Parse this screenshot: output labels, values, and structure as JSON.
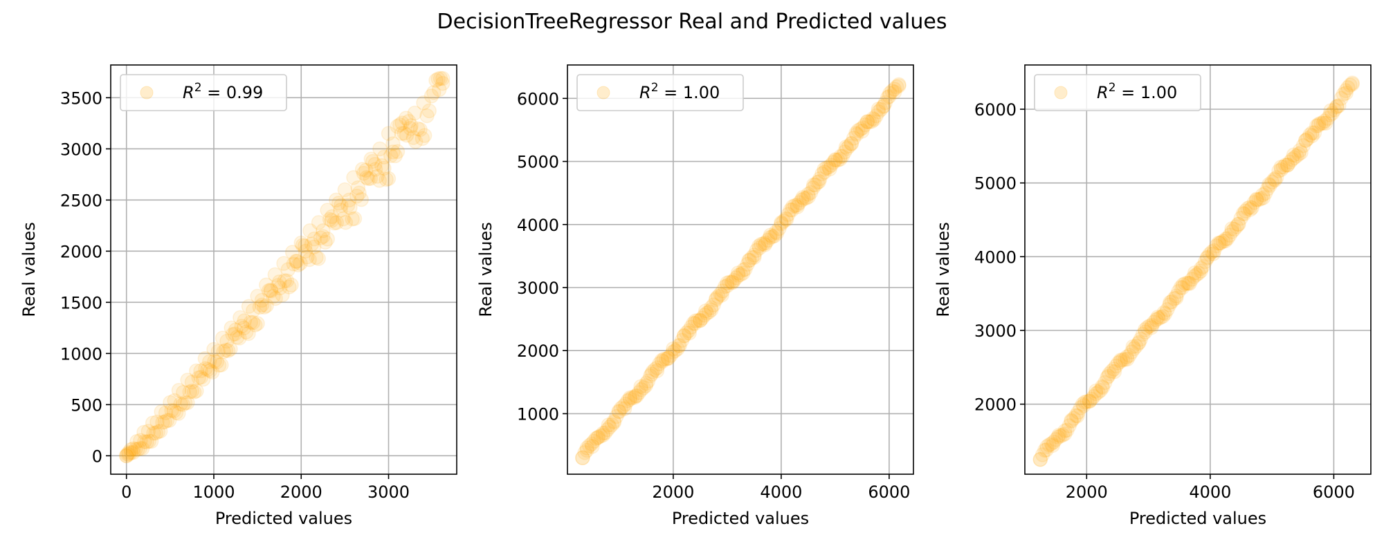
{
  "chart_data": {
    "title": "DecisionTreeRegressor Real and Predicted values",
    "panels": [
      {
        "type": "scatter",
        "xlabel": "Predicted values",
        "ylabel": "Real values",
        "xlim": [
          -180,
          3780
        ],
        "ylim": [
          -180,
          3820
        ],
        "xticks": [
          0,
          1000,
          2000,
          3000
        ],
        "yticks": [
          0,
          500,
          1000,
          1500,
          2000,
          2500,
          3000,
          3500
        ],
        "grid": true,
        "legend": {
          "position": "top-left",
          "label_prefix": "R",
          "label_sup": "2",
          "label_value": "0.99"
        },
        "color": "#FFA500",
        "point_alpha": 0.12,
        "points": [
          [
            0,
            0
          ],
          [
            10,
            15
          ],
          [
            25,
            30
          ],
          [
            50,
            60
          ],
          [
            80,
            70
          ],
          [
            120,
            140
          ],
          [
            160,
            150
          ],
          [
            200,
            230
          ],
          [
            250,
            240
          ],
          [
            300,
            320
          ],
          [
            350,
            330
          ],
          [
            400,
            430
          ],
          [
            450,
            420
          ],
          [
            500,
            520
          ],
          [
            550,
            540
          ],
          [
            600,
            640
          ],
          [
            650,
            620
          ],
          [
            700,
            740
          ],
          [
            750,
            720
          ],
          [
            800,
            830
          ],
          [
            850,
            830
          ],
          [
            900,
            950
          ],
          [
            950,
            920
          ],
          [
            1000,
            1040
          ],
          [
            1050,
            1020
          ],
          [
            1100,
            1150
          ],
          [
            1150,
            1120
          ],
          [
            1200,
            1250
          ],
          [
            1250,
            1230
          ],
          [
            1300,
            1350
          ],
          [
            1350,
            1320
          ],
          [
            1400,
            1460
          ],
          [
            1450,
            1420
          ],
          [
            1500,
            1560
          ],
          [
            1550,
            1520
          ],
          [
            1600,
            1670
          ],
          [
            1650,
            1620
          ],
          [
            1700,
            1770
          ],
          [
            1750,
            1700
          ],
          [
            1800,
            1880
          ],
          [
            1850,
            1820
          ],
          [
            1900,
            1990
          ],
          [
            1950,
            1900
          ],
          [
            2000,
            2080
          ],
          [
            2050,
            2000
          ],
          [
            2100,
            2200
          ],
          [
            2150,
            2120
          ],
          [
            2200,
            2280
          ],
          [
            2250,
            2200
          ],
          [
            2300,
            2400
          ],
          [
            2350,
            2300
          ],
          [
            2400,
            2500
          ],
          [
            2450,
            2400
          ],
          [
            2500,
            2600
          ],
          [
            2550,
            2500
          ],
          [
            2600,
            2720
          ],
          [
            2650,
            2620
          ],
          [
            2700,
            2800
          ],
          [
            2750,
            2720
          ],
          [
            2800,
            2900
          ],
          [
            2850,
            2800
          ],
          [
            2900,
            3000
          ],
          [
            2950,
            2920
          ],
          [
            3000,
            3150
          ],
          [
            3050,
            3050
          ],
          [
            3100,
            3220
          ],
          [
            3150,
            3150
          ],
          [
            3200,
            3300
          ],
          [
            3250,
            3200
          ],
          [
            3300,
            3350
          ],
          [
            3400,
            3450
          ],
          [
            3580,
            3580
          ],
          [
            3620,
            3640
          ]
        ]
      },
      {
        "type": "scatter",
        "xlabel": "Predicted values",
        "ylabel": "Real values",
        "xlim": [
          40,
          6450
        ],
        "ylim": [
          40,
          6530
        ],
        "xticks": [
          2000,
          4000,
          6000
        ],
        "yticks": [
          1000,
          2000,
          3000,
          4000,
          5000,
          6000
        ],
        "grid": true,
        "legend": {
          "position": "top-left",
          "label_prefix": "R",
          "label_sup": "2",
          "label_value": "1.00"
        },
        "color": "#FFA500",
        "point_alpha": 0.12,
        "points": [
          [
            320,
            300
          ],
          [
            400,
            420
          ],
          [
            500,
            480
          ],
          [
            600,
            620
          ],
          [
            700,
            690
          ],
          [
            800,
            820
          ],
          [
            900,
            880
          ],
          [
            1000,
            1030
          ],
          [
            1100,
            1080
          ],
          [
            1200,
            1230
          ],
          [
            1300,
            1280
          ],
          [
            1400,
            1430
          ],
          [
            1500,
            1480
          ],
          [
            1600,
            1630
          ],
          [
            1700,
            1680
          ],
          [
            1800,
            1830
          ],
          [
            1900,
            1880
          ],
          [
            2000,
            2030
          ],
          [
            2100,
            2080
          ],
          [
            2200,
            2230
          ],
          [
            2300,
            2280
          ],
          [
            2400,
            2430
          ],
          [
            2500,
            2480
          ],
          [
            2600,
            2630
          ],
          [
            2700,
            2680
          ],
          [
            2800,
            2830
          ],
          [
            2900,
            2880
          ],
          [
            3000,
            3030
          ],
          [
            3100,
            3080
          ],
          [
            3200,
            3230
          ],
          [
            3300,
            3280
          ],
          [
            3400,
            3430
          ],
          [
            3500,
            3480
          ],
          [
            3600,
            3630
          ],
          [
            3700,
            3680
          ],
          [
            3800,
            3830
          ],
          [
            3900,
            3880
          ],
          [
            4000,
            4030
          ],
          [
            4100,
            4080
          ],
          [
            4200,
            4230
          ],
          [
            4300,
            4280
          ],
          [
            4400,
            4430
          ],
          [
            4500,
            4480
          ],
          [
            4600,
            4630
          ],
          [
            4700,
            4680
          ],
          [
            4800,
            4830
          ],
          [
            4900,
            4880
          ],
          [
            5000,
            5030
          ],
          [
            5100,
            5080
          ],
          [
            5200,
            5230
          ],
          [
            5300,
            5280
          ],
          [
            5400,
            5430
          ],
          [
            5500,
            5480
          ],
          [
            5600,
            5630
          ],
          [
            5700,
            5680
          ],
          [
            5800,
            5830
          ],
          [
            5900,
            5880
          ],
          [
            6000,
            6030
          ],
          [
            6100,
            6100
          ],
          [
            6180,
            6200
          ]
        ]
      },
      {
        "type": "scatter",
        "xlabel": "Predicted values",
        "ylabel": "Real values",
        "xlim": [
          1000,
          6600
        ],
        "ylim": [
          1050,
          6600
        ],
        "xticks": [
          2000,
          4000,
          6000
        ],
        "yticks": [
          2000,
          3000,
          4000,
          5000,
          6000
        ],
        "grid": true,
        "legend": {
          "position": "top-left",
          "label_prefix": "R",
          "label_sup": "2",
          "label_value": "1.00"
        },
        "color": "#FFA500",
        "point_alpha": 0.12,
        "points": [
          [
            1250,
            1250
          ],
          [
            1350,
            1380
          ],
          [
            1450,
            1440
          ],
          [
            1550,
            1580
          ],
          [
            1650,
            1640
          ],
          [
            1750,
            1780
          ],
          [
            1850,
            1840
          ],
          [
            1950,
            1980
          ],
          [
            2050,
            2040
          ],
          [
            2150,
            2180
          ],
          [
            2250,
            2240
          ],
          [
            2350,
            2380
          ],
          [
            2450,
            2440
          ],
          [
            2550,
            2580
          ],
          [
            2650,
            2640
          ],
          [
            2750,
            2780
          ],
          [
            2850,
            2840
          ],
          [
            2950,
            2980
          ],
          [
            3050,
            3040
          ],
          [
            3150,
            3180
          ],
          [
            3250,
            3240
          ],
          [
            3350,
            3380
          ],
          [
            3450,
            3440
          ],
          [
            3550,
            3580
          ],
          [
            3650,
            3640
          ],
          [
            3750,
            3780
          ],
          [
            3850,
            3840
          ],
          [
            3950,
            3980
          ],
          [
            4050,
            4040
          ],
          [
            4150,
            4180
          ],
          [
            4250,
            4240
          ],
          [
            4350,
            4380
          ],
          [
            4450,
            4440
          ],
          [
            4550,
            4580
          ],
          [
            4650,
            4640
          ],
          [
            4750,
            4780
          ],
          [
            4850,
            4840
          ],
          [
            4950,
            4980
          ],
          [
            5050,
            5040
          ],
          [
            5150,
            5180
          ],
          [
            5250,
            5240
          ],
          [
            5350,
            5380
          ],
          [
            5450,
            5440
          ],
          [
            5550,
            5580
          ],
          [
            5650,
            5640
          ],
          [
            5750,
            5780
          ],
          [
            5850,
            5840
          ],
          [
            5950,
            5980
          ],
          [
            6050,
            6040
          ],
          [
            6200,
            6220
          ],
          [
            6300,
            6340
          ]
        ]
      }
    ]
  }
}
